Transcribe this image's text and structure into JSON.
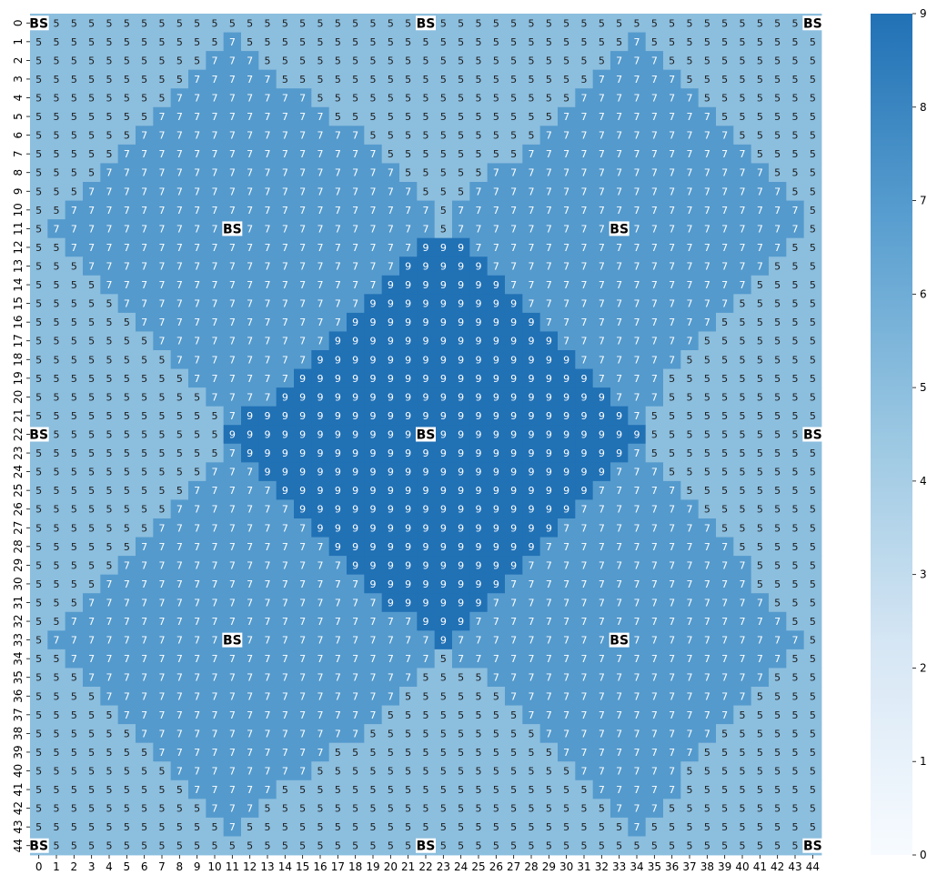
{
  "chart_data": {
    "type": "heatmap",
    "title": "",
    "xlabel": "",
    "ylabel": "",
    "x_ticks": [
      "0",
      "1",
      "2",
      "3",
      "4",
      "5",
      "6",
      "7",
      "8",
      "9",
      "10",
      "11",
      "12",
      "13",
      "14",
      "15",
      "16",
      "17",
      "18",
      "19",
      "20",
      "21",
      "22",
      "23",
      "24",
      "25",
      "26",
      "27",
      "28",
      "29",
      "30",
      "31",
      "32",
      "33",
      "34",
      "35",
      "36",
      "37",
      "38",
      "39",
      "40",
      "41",
      "42",
      "43",
      "44"
    ],
    "y_ticks": [
      "0",
      "1",
      "2",
      "3",
      "4",
      "5",
      "6",
      "7",
      "8",
      "9",
      "10",
      "11",
      "12",
      "13",
      "14",
      "15",
      "16",
      "17",
      "18",
      "19",
      "20",
      "21",
      "22",
      "23",
      "24",
      "25",
      "26",
      "27",
      "28",
      "29",
      "30",
      "31",
      "32",
      "33",
      "34",
      "35",
      "36",
      "37",
      "38",
      "39",
      "40",
      "41",
      "42",
      "43",
      "44"
    ],
    "colorbar": {
      "min": 0,
      "max": 9,
      "ticks": [
        0,
        1,
        2,
        3,
        4,
        5,
        6,
        7,
        8,
        9
      ],
      "color_low": "#f7fbff",
      "color_high": "#2171b5"
    },
    "bs_label": "BS",
    "bs_cells": [
      [
        0,
        0
      ],
      [
        0,
        22
      ],
      [
        0,
        44
      ],
      [
        11,
        11
      ],
      [
        11,
        33
      ],
      [
        22,
        0
      ],
      [
        22,
        22
      ],
      [
        22,
        44
      ],
      [
        33,
        11
      ],
      [
        33,
        33
      ],
      [
        44,
        0
      ],
      [
        44,
        22
      ],
      [
        44,
        44
      ]
    ],
    "values": [
      "555555555555555555555555555555555555555555555",
      "555555555557555555555555555555555575555555555",
      "555555555577755555555555555555555777555555555",
      "555555555777775555555555555555557777755555555",
      "555555557777777755555555555555577777775555555",
      "555555577777777775555555555555777777777555555",
      "555555777777777777755555555557777777777755555",
      "555557777777777777775555555577777777777775555",
      "555577777777777777777555557777777777777777555",
      "555777777777777777777755577777777777777777755",
      "557777777777777777777775777777777777777777775",
      "577777777777777777777775777777777777777777775",
      "557777777777777777777799977777777777777777755",
      "555777777777777777777999997777777777777777555",
      "555577777777777777779999999777777777777775555",
      "555557777777777777799999999977777777777755555",
      "555555777777777777999999999997777777777555555",
      "555555577777777779999999999999777777775555555",
      "555555557777777799999999999999977777755555555",
      "555555555777777999999999999999997777555555555",
      "555555555577779999999999999999999777555555555",
      "555555555557999999999999999999999975555555555",
      "555555555559999999999999999999999995555555555",
      "555555555557999999999999999999999975555555555",
      "555555555577799999999999999999999777555555555",
      "555555555777779999999999999999997777755555555",
      "555555557777777999999999999999977777775555555",
      "555555577777777799999999999999777777777555555",
      "555555777777777779999999999997777777777755555",
      "555557777777777777999999999977777777777775555",
      "555577777777777777799999999777777777777775555",
      "555777777777777777779999997777777777777777555",
      "557777777777777777777799977777777777777777755",
      "577777777777777777777779777777777777777777775",
      "557777777777777777777775777777777777777777755",
      "555777777777777777777755557777777777777777555",
      "555577777777777777777555555777777777777775555",
      "555557777777777777775555555577777777777755555",
      "555555777777777777755555555557777777777555555",
      "555555577777777775555555555555777777775555555",
      "555555557777777755555555555555577777755555555",
      "555555555777775555555555555555557777755555555",
      "555555555577755555555555555555555777555555555",
      "555555555557555555555555555555555575555555555",
      "555555555555555555555555555555555555555555555"
    ]
  }
}
